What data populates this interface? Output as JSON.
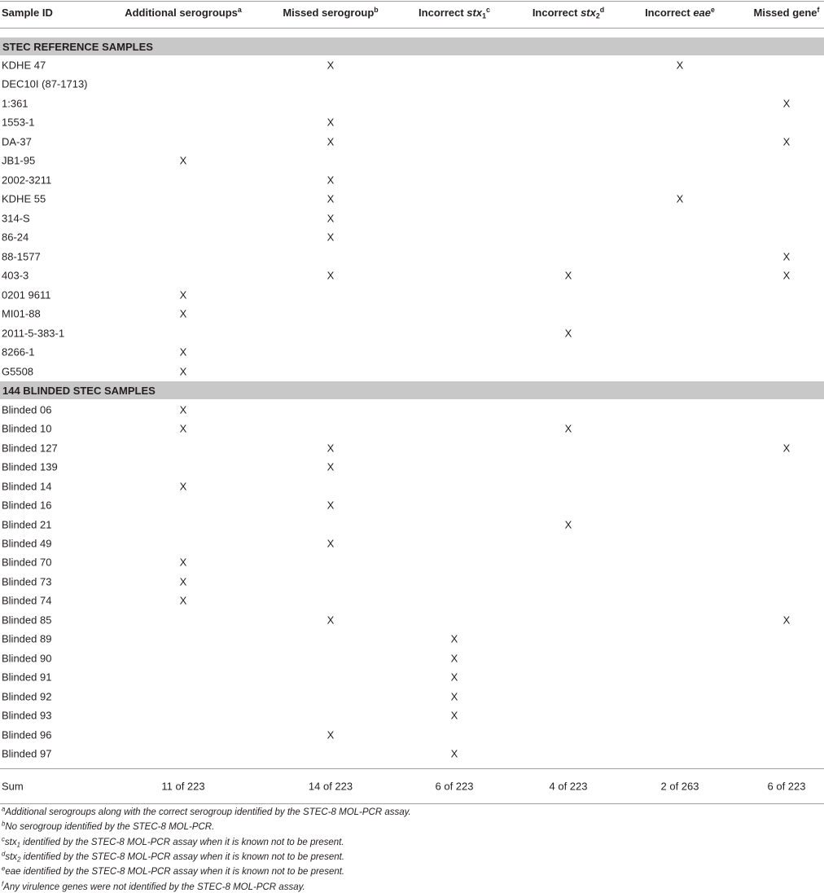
{
  "table": {
    "header": [
      {
        "text": "Sample ID"
      },
      {
        "text": "Additional serogroups",
        "sup": "a"
      },
      {
        "text": "Missed serogroup",
        "sup": "b"
      },
      {
        "text": "Incorrect ",
        "gene": "stx",
        "sub": "1",
        "sup": "c"
      },
      {
        "text": "Incorrect ",
        "gene": "stx",
        "sub": "2",
        "sup": "d"
      },
      {
        "text": "Incorrect ",
        "gene": "eae",
        "sup": "e"
      },
      {
        "text": "Missed gene",
        "sup": "f"
      }
    ],
    "sections": [
      {
        "title": "STEC REFERENCE SAMPLES",
        "rows": [
          [
            "KDHE 47",
            null,
            "X",
            null,
            null,
            "X",
            null
          ],
          [
            "DEC10I (87-1713)",
            null,
            null,
            null,
            null,
            null,
            null
          ],
          [
            "1:361",
            null,
            null,
            null,
            null,
            null,
            "X"
          ],
          [
            "1553-1",
            null,
            "X",
            null,
            null,
            null,
            null
          ],
          [
            "DA-37",
            null,
            "X",
            null,
            null,
            null,
            "X"
          ],
          [
            "JB1-95",
            "X",
            null,
            null,
            null,
            null,
            null
          ],
          [
            "2002-3211",
            null,
            "X",
            null,
            null,
            null,
            null
          ],
          [
            "KDHE 55",
            null,
            "X",
            null,
            null,
            "X",
            null
          ],
          [
            "314-S",
            null,
            "X",
            null,
            null,
            null,
            null
          ],
          [
            "86-24",
            null,
            "X",
            null,
            null,
            null,
            null
          ],
          [
            "88-1577",
            null,
            null,
            null,
            null,
            null,
            "X"
          ],
          [
            "403-3",
            null,
            "X",
            null,
            "X",
            null,
            "X"
          ],
          [
            "0201 9611",
            "X",
            null,
            null,
            null,
            null,
            null
          ],
          [
            "MI01-88",
            "X",
            null,
            null,
            null,
            null,
            null
          ],
          [
            "2011-5-383-1",
            null,
            null,
            null,
            "X",
            null,
            null
          ],
          [
            "8266-1",
            "X",
            null,
            null,
            null,
            null,
            null
          ],
          [
            "G5508",
            "X",
            null,
            null,
            null,
            null,
            null
          ]
        ]
      },
      {
        "title": "144 BLINDED STEC SAMPLES",
        "rows": [
          [
            "Blinded 06",
            "X",
            null,
            null,
            null,
            null,
            null
          ],
          [
            "Blinded 10",
            "X",
            null,
            null,
            "X",
            null,
            null
          ],
          [
            "Blinded 127",
            null,
            "X",
            null,
            null,
            null,
            "X"
          ],
          [
            "Blinded 139",
            null,
            "X",
            null,
            null,
            null,
            null
          ],
          [
            "Blinded 14",
            "X",
            null,
            null,
            null,
            null,
            null
          ],
          [
            "Blinded 16",
            null,
            "X",
            null,
            null,
            null,
            null
          ],
          [
            "Blinded 21",
            null,
            null,
            null,
            "X",
            null,
            null
          ],
          [
            "Blinded 49",
            null,
            "X",
            null,
            null,
            null,
            null
          ],
          [
            "Blinded 70",
            "X",
            null,
            null,
            null,
            null,
            null
          ],
          [
            "Blinded 73",
            "X",
            null,
            null,
            null,
            null,
            null
          ],
          [
            "Blinded 74",
            "X",
            null,
            null,
            null,
            null,
            null
          ],
          [
            "Blinded 85",
            null,
            "X",
            null,
            null,
            null,
            "X"
          ],
          [
            "Blinded 89",
            null,
            null,
            "X",
            null,
            null,
            null
          ],
          [
            "Blinded 90",
            null,
            null,
            "X",
            null,
            null,
            null
          ],
          [
            "Blinded 91",
            null,
            null,
            "X",
            null,
            null,
            null
          ],
          [
            "Blinded 92",
            null,
            null,
            "X",
            null,
            null,
            null
          ],
          [
            "Blinded 93",
            null,
            null,
            "X",
            null,
            null,
            null
          ],
          [
            "Blinded 96",
            null,
            "X",
            null,
            null,
            null,
            null
          ],
          [
            "Blinded 97",
            null,
            null,
            "X",
            null,
            null,
            null
          ]
        ]
      }
    ],
    "sum": [
      "Sum",
      "11 of 223",
      "14 of 223",
      "6 of 223",
      "4 of 223",
      "2 of 263",
      "6 of 223"
    ]
  },
  "footnotes": [
    {
      "mark": "a",
      "text": "Additional serogroups along with the correct serogroup identified by the STEC-8 MOL-PCR assay."
    },
    {
      "mark": "b",
      "text": "No serogroup identified by the STEC-8 MOL-PCR."
    },
    {
      "mark": "c",
      "gene": "stx",
      "sub": "1",
      "text": " identified by the STEC-8 MOL-PCR assay when it is known not to be present."
    },
    {
      "mark": "d",
      "gene": "stx",
      "sub": "2",
      "text": " identified by the STEC-8 MOL-PCR assay when it is known not to be present."
    },
    {
      "mark": "e",
      "gene": "eae",
      "text": " identified by the STEC-8 MOL-PCR assay when it is known not to be present."
    },
    {
      "mark": "f",
      "text": "Any virulence genes were not identified by the STEC-8 MOL-PCR assay."
    }
  ]
}
